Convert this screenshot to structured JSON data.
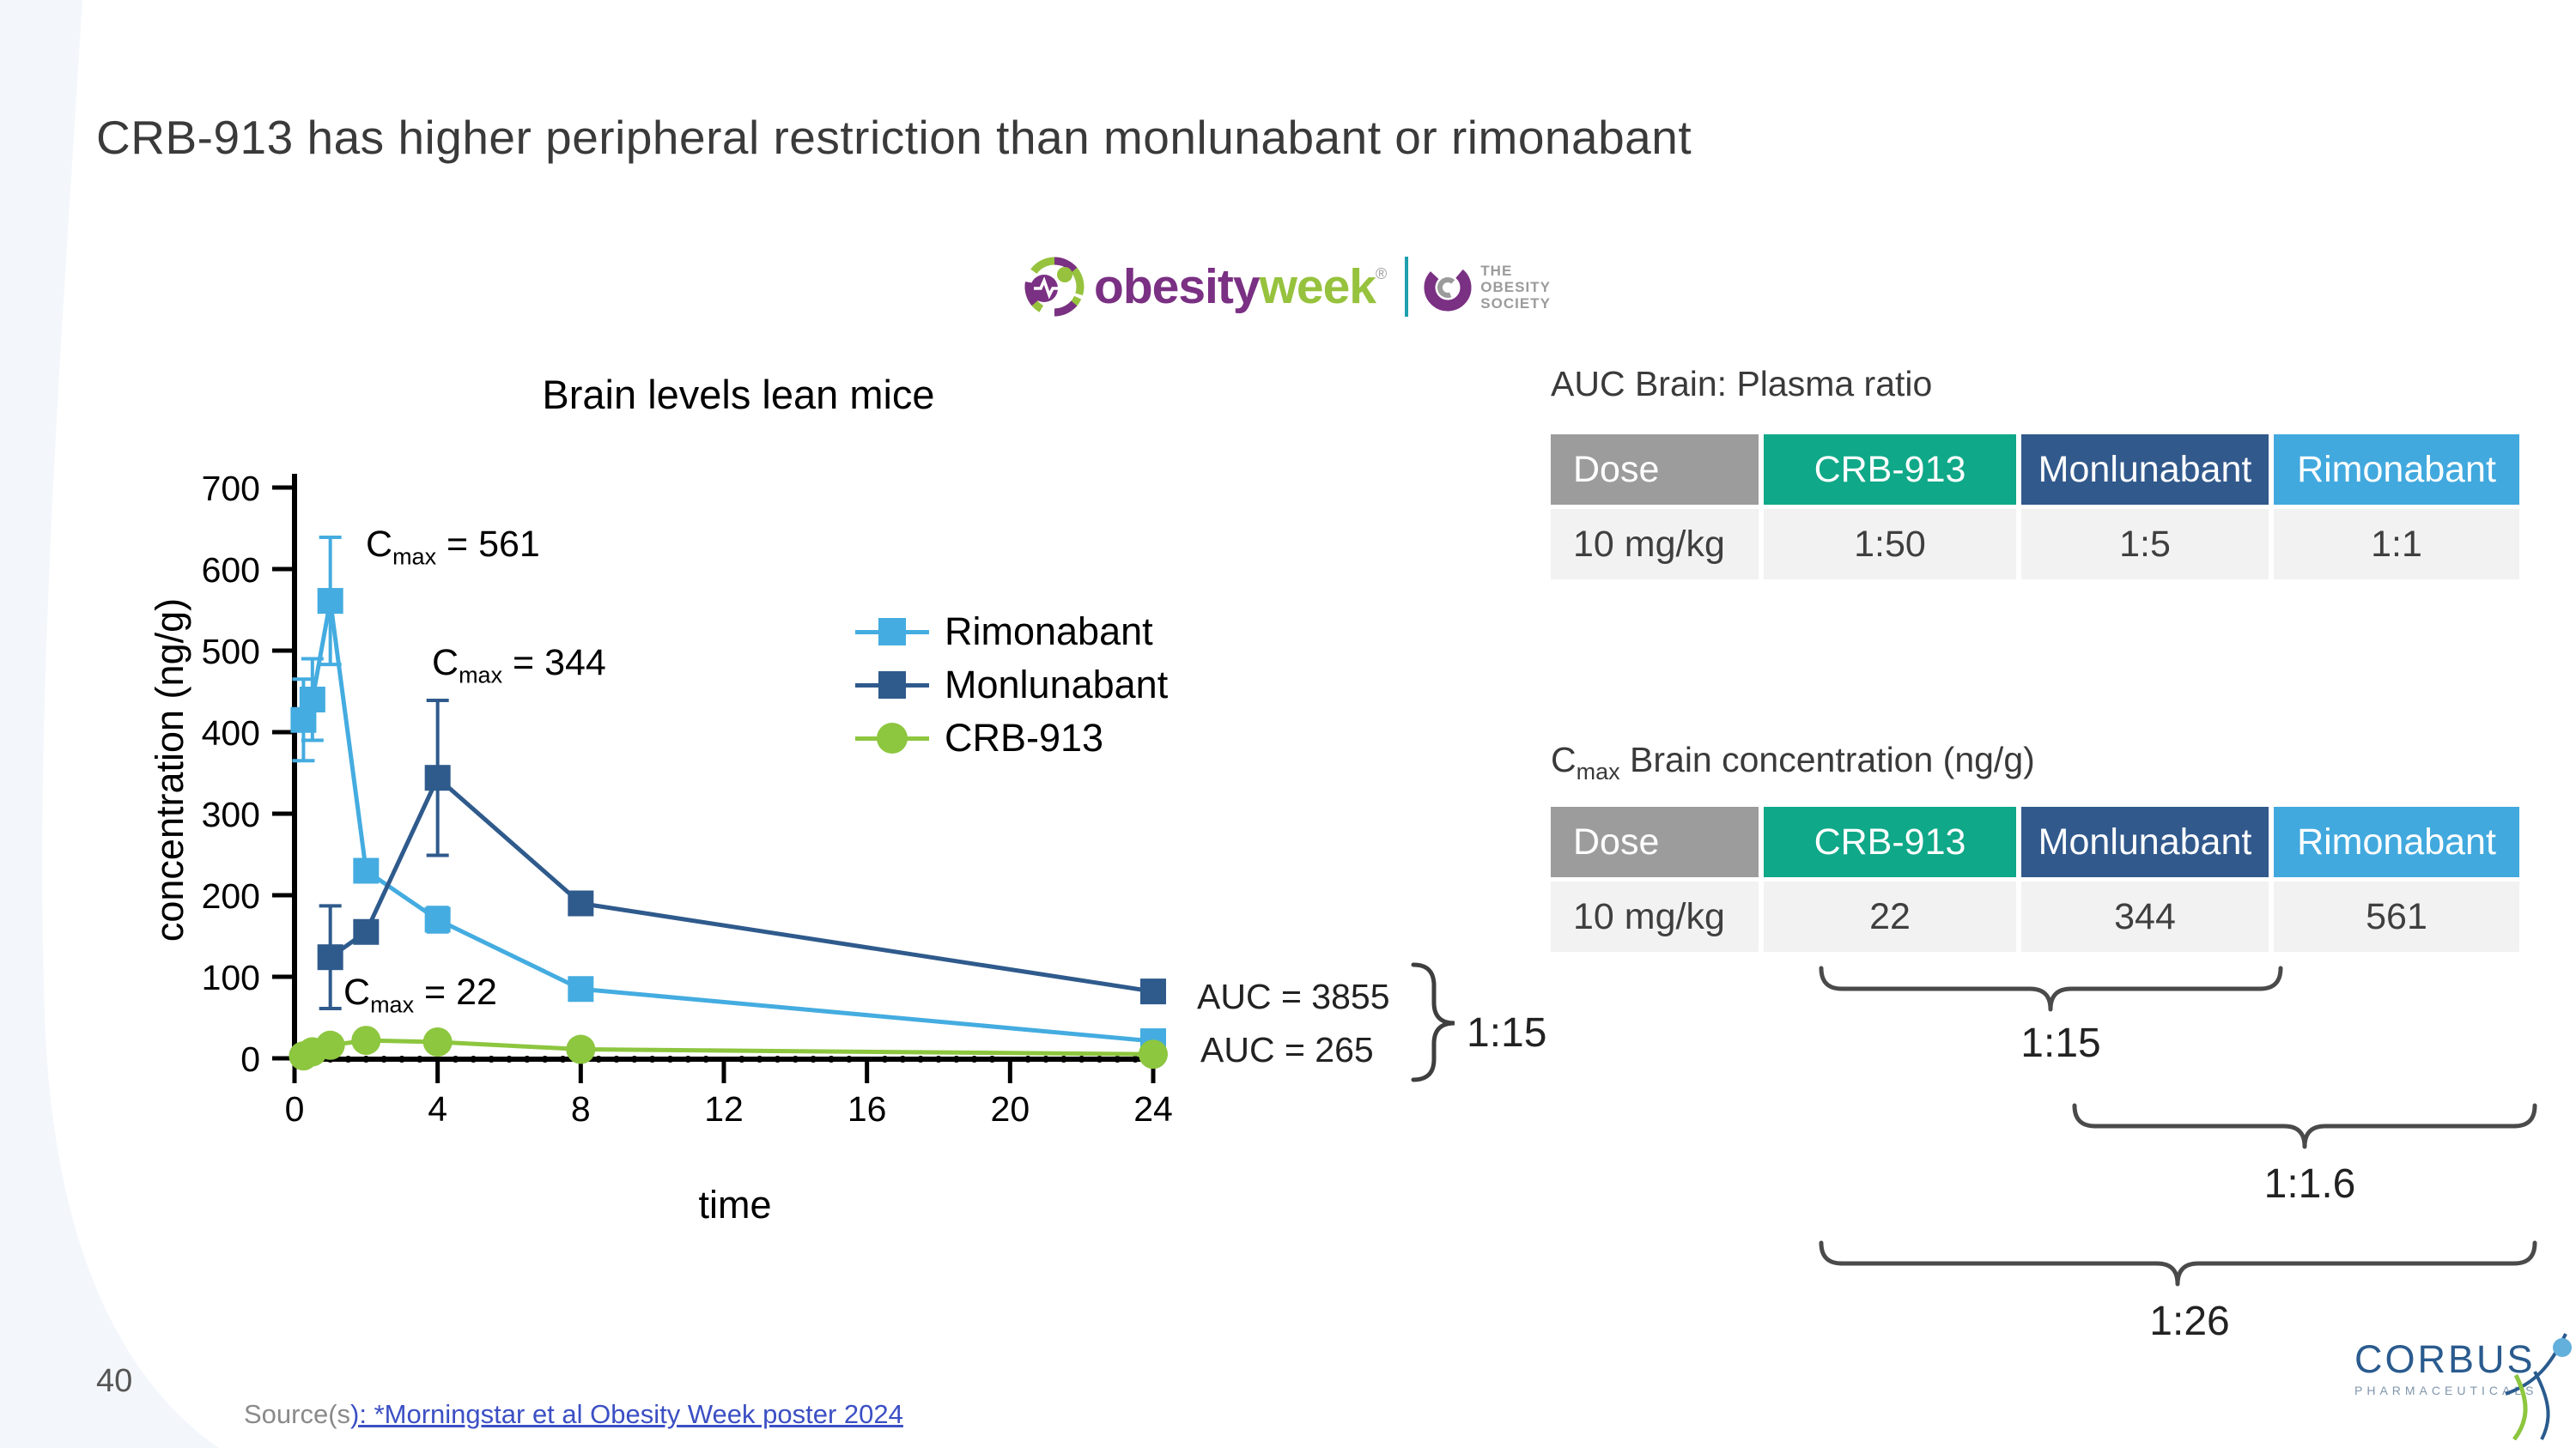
{
  "slide": {
    "title": "CRB-913 has higher peripheral restriction than monlunabant or rimonabant",
    "page_number": "40",
    "source_prefix": "Source(s",
    "source_link": "): *Morningstar et al Obesity Week poster 2024"
  },
  "logos": {
    "obesityweek": {
      "word1": "obesity",
      "word2": "week",
      "reg": "®",
      "society_line1": "THE",
      "society_line2": "OBESITY",
      "society_line3": "SOCIETY"
    },
    "corbus": {
      "name": "CORBUS",
      "sub": "PHARMACEUTICALS"
    }
  },
  "chart_data": {
    "type": "line",
    "title": "Brain levels lean mice",
    "xlabel": "time",
    "ylabel": "concentration (ng/g)",
    "xlim": [
      0,
      24
    ],
    "ylim": [
      0,
      700
    ],
    "xticks": [
      0,
      4,
      8,
      12,
      16,
      20,
      24
    ],
    "yticks": [
      0,
      100,
      200,
      300,
      400,
      500,
      600,
      700
    ],
    "grid": false,
    "legend_position": "right",
    "series": [
      {
        "name": "Rimonabant",
        "color": "#44ace0",
        "marker": "square",
        "x": [
          0.25,
          0.5,
          1,
          2,
          4,
          8,
          24
        ],
        "y": [
          415,
          440,
          561,
          230,
          170,
          85,
          21
        ],
        "err": [
          50,
          50,
          78,
          0,
          15,
          0,
          0
        ]
      },
      {
        "name": "Monlunabant",
        "color": "#2f5a8c",
        "marker": "square",
        "x": [
          1,
          2,
          4,
          8,
          24
        ],
        "y": [
          124,
          155,
          344,
          190,
          82
        ],
        "err": [
          63,
          0,
          95,
          12,
          0
        ]
      },
      {
        "name": "CRB-913",
        "color": "#8dc63f",
        "marker": "circle",
        "x": [
          0.25,
          0.5,
          1,
          2,
          4,
          8,
          24
        ],
        "y": [
          3,
          8,
          16,
          22,
          20,
          11,
          5
        ],
        "err": [
          0,
          0,
          0,
          0,
          0,
          0,
          0
        ]
      }
    ],
    "annotations": {
      "cmax_rimonabant": {
        "pre": "C",
        "sub": "max",
        "post": " = 561"
      },
      "cmax_monlunabant": {
        "pre": "C",
        "sub": "max",
        "post": " = 344"
      },
      "cmax_crb913": {
        "pre": "C",
        "sub": "max",
        "post": " = 22"
      }
    },
    "auc_labels": [
      "AUC = 3855",
      "AUC = 265"
    ],
    "auc_ratio": "1:15"
  },
  "tables": {
    "header_colors": [
      "#9c9c9c",
      "#0fa888",
      "#31598c",
      "#41a9de"
    ],
    "auc": {
      "title": "AUC Brain: Plasma ratio",
      "headers": [
        "Dose",
        "CRB-913",
        "Monlunabant",
        "Rimonabant"
      ],
      "rows": [
        [
          "10 mg/kg",
          "1:50",
          "1:5",
          "1:1"
        ]
      ]
    },
    "cmax": {
      "title_pre": "C",
      "title_sub": "max",
      "title_post": " Brain concentration (ng/g)",
      "headers": [
        "Dose",
        "CRB-913",
        "Monlunabant",
        "Rimonabant"
      ],
      "rows": [
        [
          "10 mg/kg",
          "22",
          "344",
          "561"
        ]
      ]
    },
    "brace_labels": [
      "1:15",
      "1:1.6",
      "1:26"
    ]
  },
  "colors": {
    "rimonabant": "#44ace0",
    "monlunabant": "#2f5a8c",
    "crb913": "#8dc63f",
    "teal_header": "#0fa888",
    "gray_header": "#9c9c9c",
    "row_bg": "#f2f2f2",
    "obesity_purple": "#7a3083",
    "obesity_green": "#96c23d",
    "corbus_blue": "#2a5b8e",
    "link_blue": "#3b4fc4",
    "left_band": "#f3f7fb"
  }
}
